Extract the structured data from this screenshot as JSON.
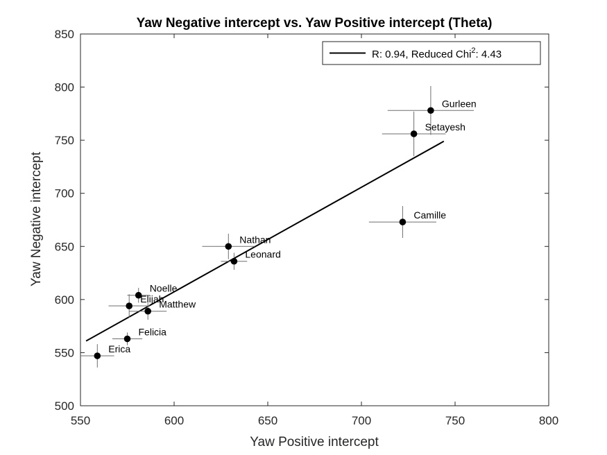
{
  "chart_data": {
    "type": "scatter",
    "title": "Yaw Negative intercept vs. Yaw Positive intercept (Theta)",
    "xlabel": "Yaw Positive intercept",
    "ylabel": "Yaw Negative intercept",
    "xlim": [
      550,
      800
    ],
    "ylim": [
      500,
      850
    ],
    "xticks": [
      "550",
      "600",
      "650",
      "700",
      "750",
      "800"
    ],
    "yticks": [
      "500",
      "550",
      "600",
      "650",
      "700",
      "750",
      "800",
      "850"
    ],
    "grid": false,
    "legend_position": "top-right",
    "legend": {
      "prefix": "R: 0.94, Reduced Chi",
      "sup": "2",
      "suffix": ": 4.43"
    },
    "points": [
      {
        "name": "Gurleen",
        "x": 737,
        "y": 778,
        "xerr": 23,
        "yerr": 23
      },
      {
        "name": "Setayesh",
        "x": 728,
        "y": 756,
        "xerr": 17,
        "yerr": 21
      },
      {
        "name": "Camille",
        "x": 722,
        "y": 673,
        "xerr": 18,
        "yerr": 15
      },
      {
        "name": "Nathan",
        "x": 629,
        "y": 650,
        "xerr": 14,
        "yerr": 12
      },
      {
        "name": "Leonard",
        "x": 632,
        "y": 636,
        "xerr": 7,
        "yerr": 8
      },
      {
        "name": "Noelle",
        "x": 581,
        "y": 604,
        "xerr": 6,
        "yerr": 7
      },
      {
        "name": "Elijah",
        "x": 576,
        "y": 594,
        "xerr": 11,
        "yerr": 11
      },
      {
        "name": "Matthew",
        "x": 586,
        "y": 589,
        "xerr": 10,
        "yerr": 8
      },
      {
        "name": "Felicia",
        "x": 575,
        "y": 563,
        "xerr": 8,
        "yerr": 6
      },
      {
        "name": "Erica",
        "x": 559,
        "y": 547,
        "xerr": 9,
        "yerr": 11
      }
    ],
    "fit_line": {
      "x": [
        553,
        744
      ],
      "y": [
        561,
        749
      ]
    }
  }
}
